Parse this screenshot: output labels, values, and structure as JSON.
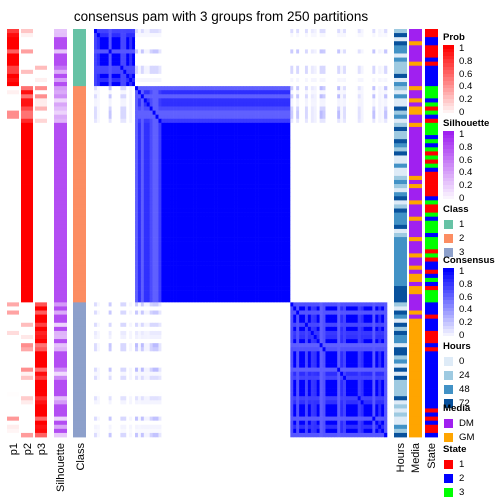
{
  "chart_data": {
    "type": "heatmap",
    "title": "consensus pam with 3 groups from 250 partitions",
    "left_tracks": [
      "p1",
      "p2",
      "p3",
      "Silhouette",
      "Class"
    ],
    "right_tracks": [
      "Hours",
      "Media",
      "State"
    ],
    "class_blocks": [
      {
        "class": "1",
        "fraction": 0.14
      },
      {
        "class": "2",
        "fraction": 0.53
      },
      {
        "class": "3",
        "fraction": 0.33
      }
    ],
    "legends": {
      "prob": {
        "title": "Prob",
        "ticks": [
          "1",
          "0.8",
          "0.6",
          "0.4",
          "0.2",
          "0"
        ],
        "low": "#ffffff",
        "high": "#ff0000"
      },
      "silhouette": {
        "title": "Silhouette",
        "ticks": [
          "1",
          "0.8",
          "0.6",
          "0.4",
          "0.2",
          "0"
        ],
        "low": "#ffffff",
        "high": "#a020f0"
      },
      "class": {
        "title": "Class",
        "items": [
          {
            "label": "1",
            "color": "#66c2a5"
          },
          {
            "label": "2",
            "color": "#fc8d62"
          },
          {
            "label": "3",
            "color": "#8da0cb"
          }
        ]
      },
      "consensus": {
        "title": "Consensus",
        "ticks": [
          "1",
          "0.8",
          "0.6",
          "0.4",
          "0.2",
          "0"
        ],
        "low": "#ffffff",
        "high": "#0000ff"
      },
      "hours": {
        "title": "Hours",
        "items": [
          {
            "label": "0",
            "color": "#deebf7"
          },
          {
            "label": "24",
            "color": "#9ecae1"
          },
          {
            "label": "48",
            "color": "#4292c6"
          },
          {
            "label": "72",
            "color": "#08519c"
          }
        ]
      },
      "media": {
        "title": "Media",
        "items": [
          {
            "label": "DM",
            "color": "#a020f0"
          },
          {
            "label": "GM",
            "color": "#ffa500"
          }
        ]
      },
      "state": {
        "title": "State",
        "items": [
          {
            "label": "1",
            "color": "#ff0000"
          },
          {
            "label": "2",
            "color": "#0000ff"
          },
          {
            "label": "3",
            "color": "#00ff00"
          }
        ]
      }
    }
  }
}
